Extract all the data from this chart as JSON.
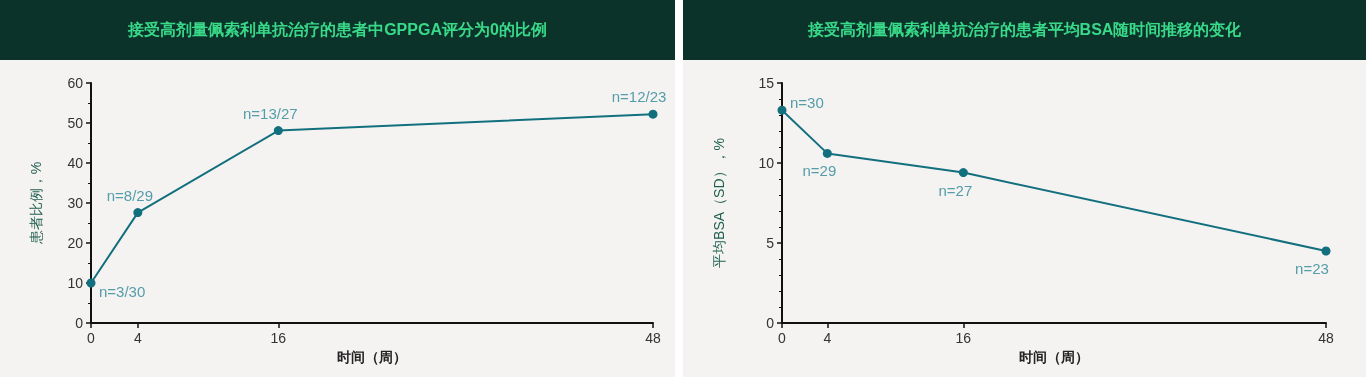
{
  "chart_data": [
    {
      "type": "line",
      "title": "接受高剂量佩索利单抗治疗的患者中GPPGA评分为0的比例",
      "xlabel": "时间（周）",
      "ylabel": "患者比例，%",
      "x": [
        0,
        4,
        16,
        48
      ],
      "series": [
        {
          "color": "#12707e",
          "values": [
            10,
            27.6,
            48.1,
            52.2
          ]
        }
      ],
      "xlim": [
        0,
        48
      ],
      "xticks": [
        0,
        4,
        16,
        48
      ],
      "ylim": [
        0,
        60
      ],
      "yticks": [
        0,
        10,
        20,
        30,
        40,
        50,
        60
      ],
      "marker": "circle",
      "line_style": "solid",
      "grid": false,
      "annotations": [
        {
          "text": "n=3/30",
          "x": 0,
          "y": 10
        },
        {
          "text": "n=8/29",
          "x": 4,
          "y": 27.6
        },
        {
          "text": "n=13/27",
          "x": 16,
          "y": 48.1
        },
        {
          "text": "n=12/23",
          "x": 48,
          "y": 52.2
        }
      ]
    },
    {
      "type": "line",
      "title": "接受高剂量佩索利单抗治疗的患者平均BSA随时间推移的变化",
      "xlabel": "时间（周）",
      "ylabel": "平均BSA（SD），%",
      "x": [
        0,
        4,
        16,
        48
      ],
      "series": [
        {
          "color": "#12707e",
          "values": [
            13.3,
            10.6,
            9.4,
            4.5
          ]
        }
      ],
      "xlim": [
        0,
        48
      ],
      "xticks": [
        0,
        4,
        16,
        48
      ],
      "ylim": [
        0,
        15
      ],
      "yticks": [
        0,
        5,
        10,
        15
      ],
      "marker": "circle",
      "line_style": "solid",
      "grid": false,
      "annotations": [
        {
          "text": "n=30",
          "x": 0,
          "y": 13.3
        },
        {
          "text": "n=29",
          "x": 4,
          "y": 10.6
        },
        {
          "text": "n=27",
          "x": 16,
          "y": 9.4
        },
        {
          "text": "n=23",
          "x": 48,
          "y": 4.5
        }
      ]
    }
  ]
}
